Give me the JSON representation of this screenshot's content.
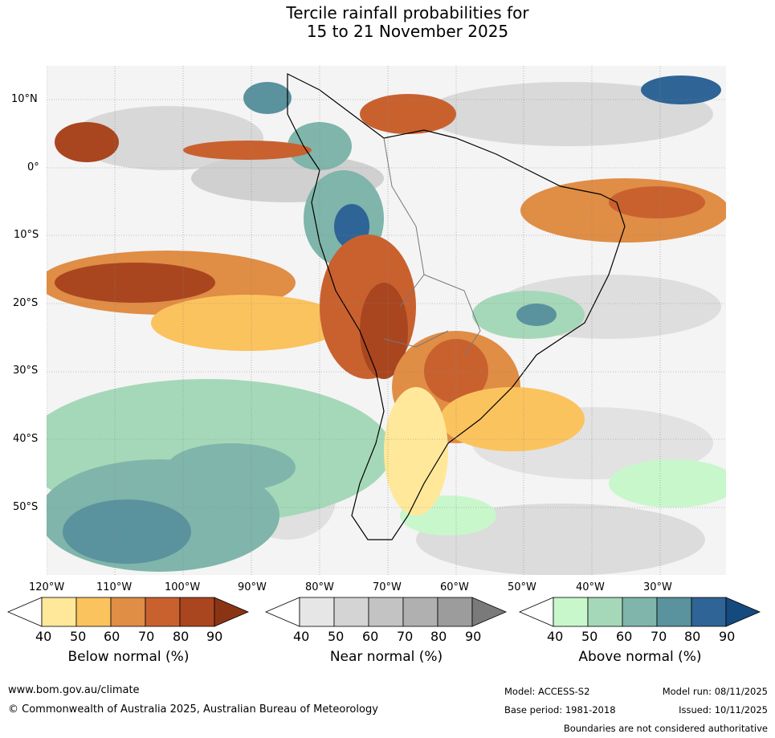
{
  "title": {
    "line1": "Tercile rainfall probabilities for",
    "line2": "15 to 21 November 2025"
  },
  "map": {
    "lat_labels": [
      "10°N",
      "0°",
      "10°S",
      "20°S",
      "30°S",
      "40°S",
      "50°S"
    ],
    "lon_labels": [
      "120°W",
      "110°W",
      "100°W",
      "90°W",
      "80°W",
      "70°W",
      "60°W",
      "50°W",
      "40°W",
      "30°W"
    ]
  },
  "colorbars": [
    {
      "name": "below",
      "caption": "Below normal (%)",
      "ticks": [
        "40",
        "50",
        "60",
        "70",
        "80",
        "90"
      ],
      "colors": [
        "#ffffff",
        "#ffe89a",
        "#fbc35e",
        "#e08d45",
        "#c9612f",
        "#a9461f",
        "#8b3414"
      ]
    },
    {
      "name": "near",
      "caption": "Near normal (%)",
      "ticks": [
        "40",
        "50",
        "60",
        "70",
        "80",
        "90"
      ],
      "colors": [
        "#ffffff",
        "#e6e6e6",
        "#d4d4d4",
        "#c3c3c3",
        "#b0b0b0",
        "#9c9c9c",
        "#7a7a7a"
      ]
    },
    {
      "name": "above",
      "caption": "Above normal (%)",
      "ticks": [
        "40",
        "50",
        "60",
        "70",
        "80",
        "90"
      ],
      "colors": [
        "#ffffff",
        "#c8f7cc",
        "#a5d8b8",
        "#7fb5aa",
        "#5a929e",
        "#2f6496",
        "#154a7e"
      ]
    }
  ],
  "footer": {
    "website": "www.bom.gov.au/climate",
    "copyright": "© Commonwealth of Australia 2025, Australian Bureau of Meteorology",
    "model": "Model: ACCESS-S2",
    "model_run": "Model run: 08/11/2025",
    "base_period": "Base period: 1981-2018",
    "issued": "Issued: 10/11/2025",
    "boundaries": "Boundaries are not considered authoritative"
  }
}
